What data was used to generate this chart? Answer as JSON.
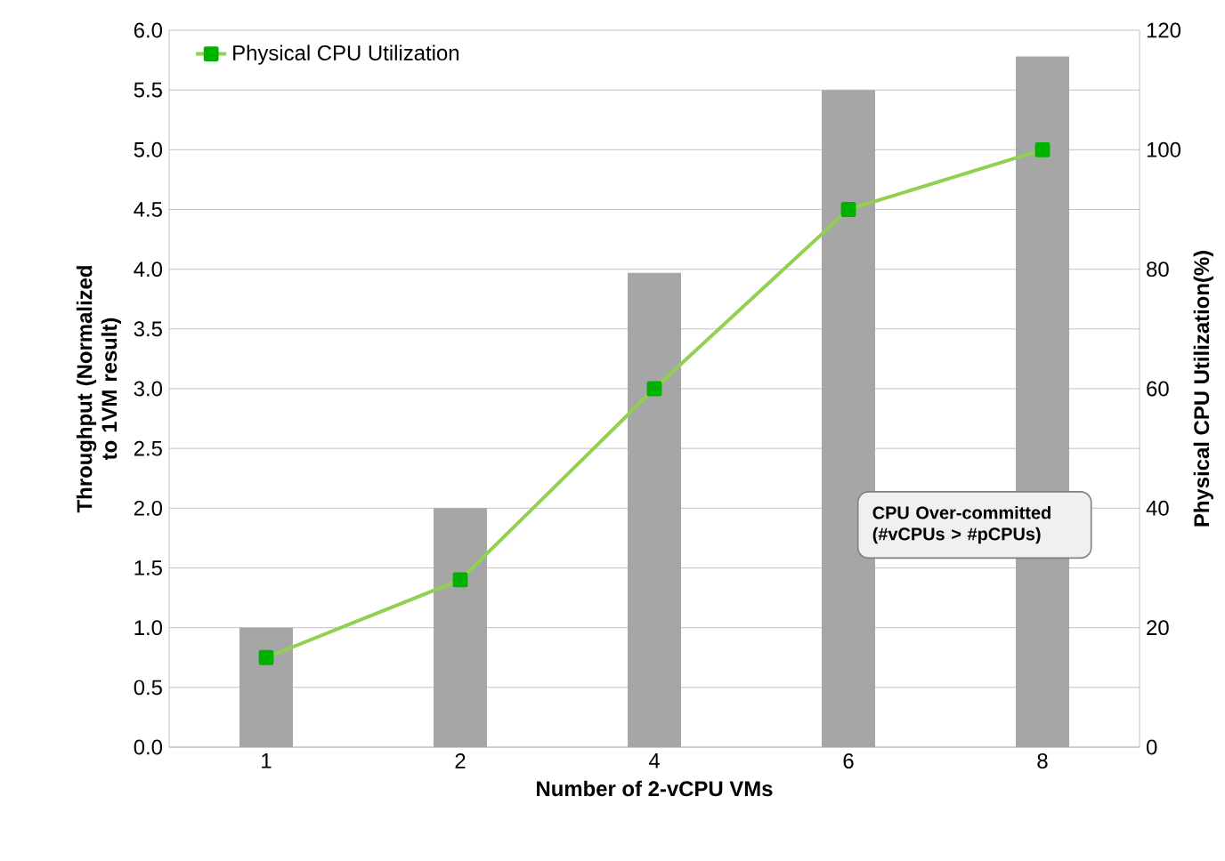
{
  "chart_data": {
    "type": "bar",
    "xlabel": "Number of 2-vCPU VMs",
    "ylabel": "Throughput (Normalized to 1VM result)",
    "y2label": "Physical CPU Utilization(%)",
    "categories": [
      "1",
      "2",
      "4",
      "6",
      "8"
    ],
    "series": [
      {
        "color": "#a6a6a6",
        "values": [
          1.0,
          2.0,
          3.97,
          5.5,
          5.78
        ]
      },
      {
        "type": "line",
        "name": "Physical CPU Utilization",
        "color": "#92d050",
        "axis": "y2",
        "values": [
          15,
          28,
          60,
          90,
          100
        ]
      }
    ],
    "ylim": [
      0,
      6
    ],
    "yticks": [
      {
        "value": 0,
        "label": "0.0"
      },
      {
        "value": 0.5,
        "label": "0.5"
      },
      {
        "value": 1,
        "label": "1.0"
      },
      {
        "value": 1.5,
        "label": "1.5"
      },
      {
        "value": 2,
        "label": "2.0"
      },
      {
        "value": 2.5,
        "label": "2.5"
      },
      {
        "value": 3,
        "label": "3.0"
      },
      {
        "value": 3.5,
        "label": "3.5"
      },
      {
        "value": 4,
        "label": "4.0"
      },
      {
        "value": 4.5,
        "label": "4.5"
      },
      {
        "value": 5,
        "label": "5.0"
      },
      {
        "value": 5.5,
        "label": "5.5"
      },
      {
        "value": 6,
        "label": "6.0"
      }
    ],
    "y2lim": [
      0,
      120
    ],
    "y2ticks": [
      0,
      20,
      40,
      60,
      80,
      100,
      120
    ],
    "annotations": [
      "CPU Over-committed (#vCPUs > #pCPUs)"
    ],
    "grid": "y",
    "legend": "top left",
    "marker": "square",
    "line_style": "solid"
  }
}
